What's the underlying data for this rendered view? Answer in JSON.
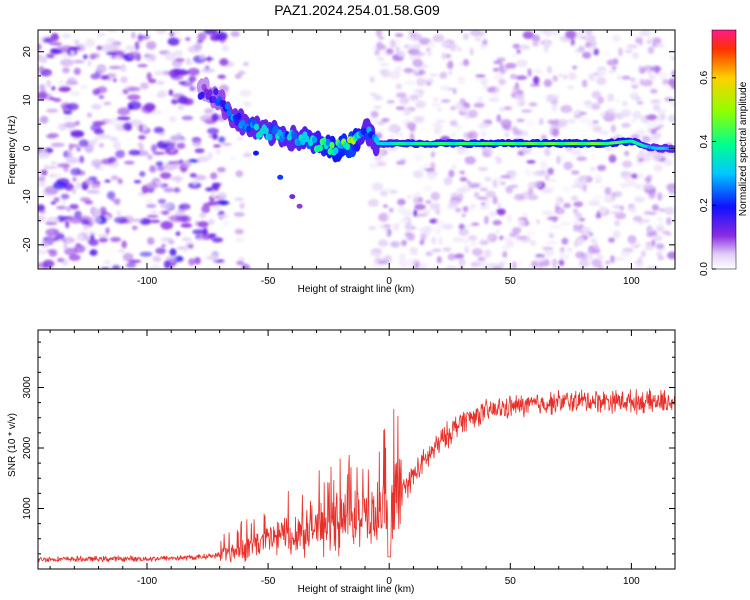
{
  "title": "PAZ1.2024.254.01.58.G09",
  "chart_data": [
    {
      "type": "heatmap",
      "xlabel": "Height of straight line (km)",
      "ylabel": "Frequency (Hz)",
      "xlim": [
        -145,
        118
      ],
      "ylim": [
        -25,
        24.5
      ],
      "xticks": [
        -100,
        -50,
        0,
        50,
        100
      ],
      "xtick_labels": [
        "-100",
        "-50",
        "0",
        "50",
        "100"
      ],
      "yticks": [
        -20,
        -10,
        0,
        10,
        20
      ],
      "ytick_labels": [
        "-20",
        "-10",
        "0",
        "10",
        "20"
      ],
      "colorbar": {
        "label": "Normalized spectral amplitude",
        "range": [
          0.0,
          0.75
        ],
        "ticks": [
          0.0,
          0.2,
          0.4,
          0.6
        ],
        "tick_labels": [
          "0.0",
          "0.2",
          "0.4",
          "0.6"
        ]
      },
      "noise_gap_x": [
        -68,
        -7
      ],
      "ridge": {
        "x": [
          -75,
          -70,
          -65,
          -60,
          -55,
          -50,
          -45,
          -40,
          -35,
          -30,
          -25,
          -20,
          -15,
          -12,
          -10,
          -8,
          -5,
          0,
          10,
          20,
          30,
          40,
          50,
          60,
          70,
          80,
          90,
          100,
          105,
          110,
          118
        ],
        "y": [
          12,
          10,
          7,
          5,
          4,
          3,
          3,
          2,
          2,
          1,
          0,
          0,
          1,
          3,
          4,
          3,
          1,
          1,
          1,
          1,
          1,
          1,
          1,
          1,
          1,
          1,
          1,
          1.5,
          0.5,
          0,
          0
        ],
        "amplitude": [
          0.15,
          0.2,
          0.25,
          0.28,
          0.3,
          0.3,
          0.32,
          0.3,
          0.33,
          0.35,
          0.4,
          0.45,
          0.5,
          0.35,
          0.3,
          0.3,
          0.3,
          0.35,
          0.38,
          0.4,
          0.4,
          0.42,
          0.42,
          0.44,
          0.44,
          0.45,
          0.45,
          0.4,
          0.35,
          0.3,
          0.3
        ]
      }
    },
    {
      "type": "line",
      "xlabel": "Height of straight line (km)",
      "ylabel": "SNR (10 * v/v)",
      "xlim": [
        -145,
        118
      ],
      "ylim": [
        0,
        3950
      ],
      "xticks": [
        -100,
        -50,
        0,
        50,
        100
      ],
      "xtick_labels": [
        "-100",
        "-50",
        "0",
        "50",
        "100"
      ],
      "yticks": [
        1000,
        2000,
        3000
      ],
      "ytick_labels": [
        "1000",
        "2000",
        "3000"
      ],
      "color": "#e8302a",
      "trend": {
        "x": [
          -145,
          -100,
          -80,
          -70,
          -60,
          -50,
          -40,
          -30,
          -20,
          -10,
          -5,
          0,
          5,
          10,
          15,
          20,
          25,
          30,
          40,
          50,
          60,
          70,
          80,
          90,
          100,
          110,
          118
        ],
        "y": [
          160,
          170,
          190,
          230,
          330,
          480,
          600,
          700,
          780,
          850,
          900,
          950,
          1250,
          1550,
          1800,
          2050,
          2250,
          2450,
          2600,
          2680,
          2720,
          2760,
          2780,
          2780,
          2770,
          2760,
          2770
        ]
      },
      "dip": {
        "x": 0,
        "y": 200
      }
    }
  ]
}
